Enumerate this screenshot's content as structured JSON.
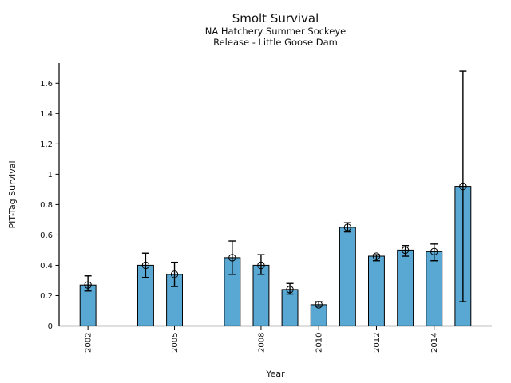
{
  "figure": {
    "title": "Smolt Survival",
    "subtitle1": "NA Hatchery Summer Sockeye",
    "subtitle2": "Release - Little Goose Dam"
  },
  "chart_data": {
    "type": "bar",
    "title": "Smolt Survival",
    "subtitle1": "NA Hatchery Summer Sockeye",
    "subtitle2": "Release - Little Goose Dam",
    "xlabel": "Year",
    "ylabel": "PIT-Tag Survival",
    "x": [
      2002,
      2004,
      2005,
      2007,
      2008,
      2009,
      2010,
      2011,
      2012,
      2013,
      2014,
      2015
    ],
    "values": [
      0.27,
      0.4,
      0.34,
      0.45,
      0.4,
      0.24,
      0.14,
      0.65,
      0.46,
      0.5,
      0.49,
      0.92
    ],
    "error_low": [
      0.23,
      0.32,
      0.26,
      0.34,
      0.34,
      0.21,
      0.13,
      0.62,
      0.43,
      0.46,
      0.43,
      0.16
    ],
    "error_high": [
      0.33,
      0.48,
      0.42,
      0.56,
      0.47,
      0.28,
      0.16,
      0.68,
      0.47,
      0.53,
      0.54,
      1.68
    ],
    "xlim": [
      2001,
      2016
    ],
    "ylim": [
      0,
      1.733
    ],
    "xticks": {
      "values": [
        2002,
        2005,
        2008,
        2010,
        2012,
        2014
      ],
      "labels": [
        "2002",
        "2005",
        "2008",
        "2010",
        "2012",
        "2014"
      ]
    },
    "yticks": {
      "values": [
        0,
        0.2,
        0.4,
        0.6,
        0.8,
        1,
        1.2,
        1.4,
        1.6
      ],
      "labels": [
        "0",
        "0.2",
        "0.4",
        "0.6",
        "0.8",
        "1",
        "1.2",
        "1.4",
        "1.6"
      ]
    },
    "bar_width_years": 0.55,
    "bar_color": "#58A8D3",
    "bar_edge_color": "#000000",
    "errorbar_color": "#000000",
    "marker": "circle-plus",
    "grid": false,
    "legend": null
  }
}
